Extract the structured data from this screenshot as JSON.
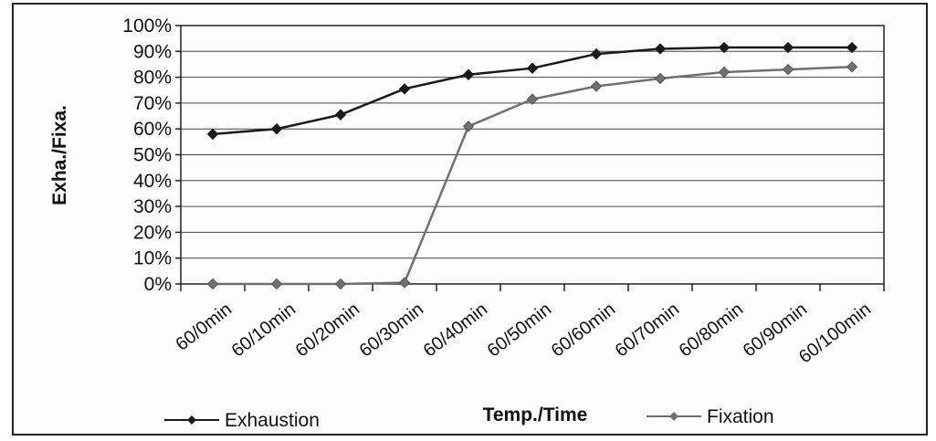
{
  "chart_data": {
    "type": "line",
    "xlabel": "Temp./Time",
    "ylabel": "Exha./Fixa.",
    "categories": [
      "60/0min",
      "60/10min",
      "60/20min",
      "60/30min",
      "60/40min",
      "60/50min",
      "60/60min",
      "60/70min",
      "60/80min",
      "60/90min",
      "60/100min"
    ],
    "y_ticks": [
      "0%",
      "10%",
      "20%",
      "30%",
      "40%",
      "50%",
      "60%",
      "70%",
      "80%",
      "90%",
      "100%"
    ],
    "ylim": [
      0,
      100
    ],
    "grid": "horizontal",
    "legend_position": "bottom",
    "series": [
      {
        "name": "Exhaustion",
        "values": [
          58,
          60,
          65.5,
          75.5,
          81,
          83.5,
          89,
          91,
          91.5,
          91.5,
          91.5
        ],
        "color": "#1a1a1a",
        "marker": "diamond"
      },
      {
        "name": "Fixation",
        "values": [
          0,
          0,
          0,
          0.5,
          61,
          71.5,
          76.5,
          79.5,
          82,
          83,
          84
        ],
        "color": "#707070",
        "marker": "diamond"
      }
    ]
  }
}
